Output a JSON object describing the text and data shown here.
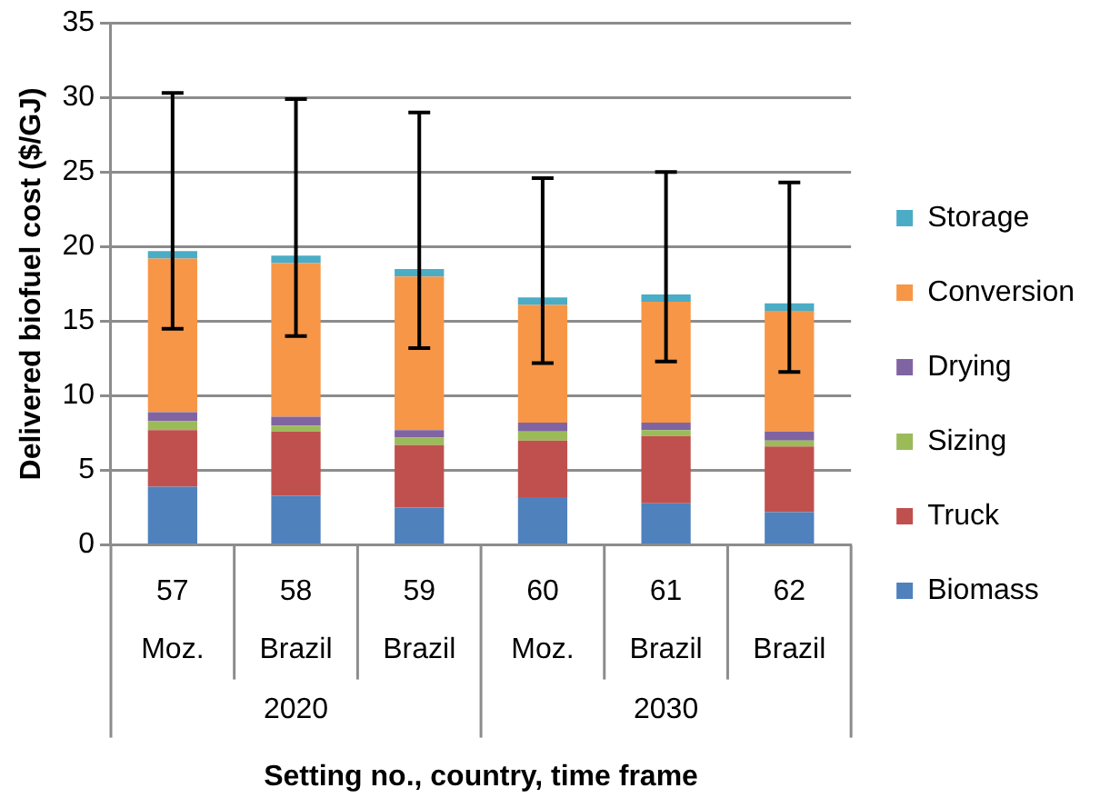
{
  "chart_data": {
    "type": "bar",
    "stacked": true,
    "ylabel": "Delivered biofuel cost ($/GJ)",
    "xlabel": "Setting no., country, time frame",
    "categories": [
      "57\nMoz.",
      "58\nBrazil",
      "59\nBrazil",
      "60\nMoz.",
      "61\nBrazil",
      "62\nBrazil"
    ],
    "annotations": [
      "2020",
      "2030"
    ],
    "ylim": [
      0,
      35
    ],
    "yticks": [
      0,
      5,
      10,
      15,
      20,
      25,
      30,
      35
    ],
    "grid": "y",
    "legend": "right",
    "series": [
      {
        "name": "Biomass",
        "color": "#4f81bd",
        "values": [
          3.9,
          3.3,
          2.5,
          3.2,
          2.8,
          2.2
        ]
      },
      {
        "name": "Truck",
        "color": "#c0504d",
        "values": [
          3.8,
          4.3,
          4.2,
          3.8,
          4.5,
          4.4
        ]
      },
      {
        "name": "Sizing",
        "color": "#9bbb59",
        "values": [
          0.6,
          0.4,
          0.5,
          0.6,
          0.4,
          0.4
        ]
      },
      {
        "name": "Drying",
        "color": "#8064a2",
        "values": [
          0.6,
          0.6,
          0.5,
          0.6,
          0.5,
          0.6
        ]
      },
      {
        "name": "Conversion",
        "color": "#f79646",
        "values": [
          10.3,
          10.3,
          10.3,
          7.9,
          8.1,
          8.1
        ]
      },
      {
        "name": "Storage",
        "color": "#4bacc6",
        "values": [
          0.5,
          0.5,
          0.5,
          0.5,
          0.5,
          0.5
        ],
        "errors": [
          [
            14.5,
            30.3
          ],
          [
            14.0,
            29.9
          ],
          [
            13.2,
            29.0
          ],
          [
            12.2,
            24.6
          ],
          [
            12.3,
            25.0
          ],
          [
            11.6,
            24.3
          ]
        ]
      }
    ]
  }
}
